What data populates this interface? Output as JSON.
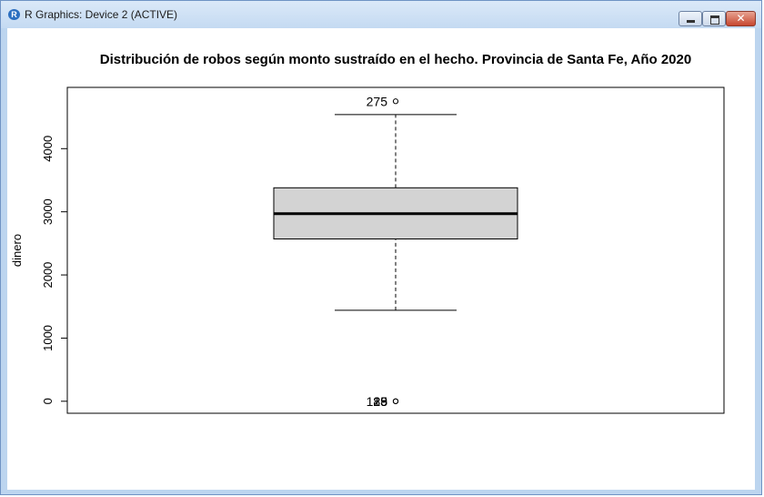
{
  "window": {
    "title": "R Graphics: Device 2 (ACTIVE)",
    "app_icon_letter": "R",
    "close_glyph": "✕"
  },
  "chart_data": {
    "type": "boxplot",
    "title": "Distribución de robos según monto sustraído en el hecho. Provincia de Santa Fe, Año 2020",
    "ylabel": "dinero",
    "xlabel": "",
    "ylim": [
      -190,
      4970
    ],
    "yticks": [
      0,
      1000,
      2000,
      3000,
      4000
    ],
    "ytick_labels": [
      "0",
      "1000",
      "2000",
      "3000",
      "4000"
    ],
    "box": {
      "min": 1440,
      "q1": 2570,
      "median": 2970,
      "q3": 3380,
      "max": 4540
    },
    "outliers": [
      {
        "value": 4750,
        "label": "275"
      },
      {
        "value": 0,
        "label": "19"
      },
      {
        "value": 0,
        "label": "23"
      },
      {
        "value": 0,
        "label": "128"
      },
      {
        "value": 0,
        "label": "85"
      }
    ],
    "box_fill": "#d3d3d3",
    "grid": false
  }
}
